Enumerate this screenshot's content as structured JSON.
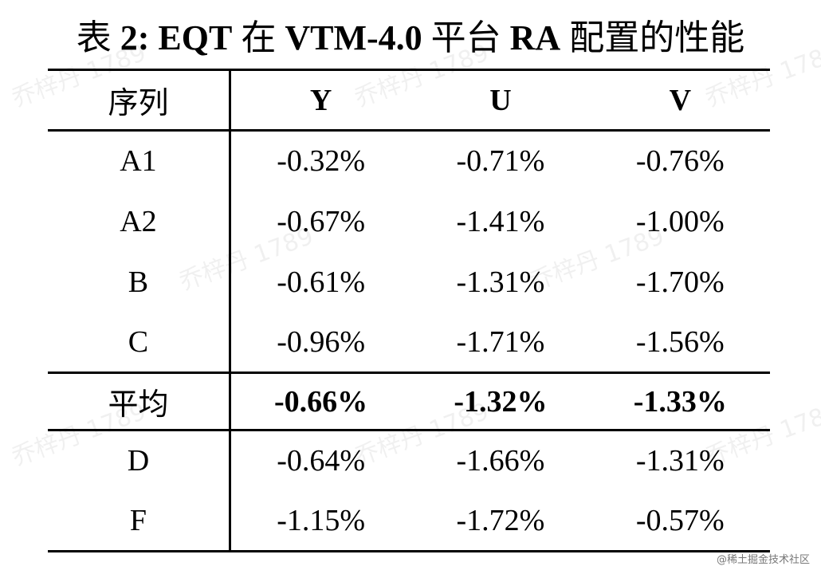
{
  "caption": {
    "prefix": "表",
    "label": "2:",
    "parts": [
      {
        "text": "EQT",
        "bold": true
      },
      {
        "text": "在",
        "bold": false
      },
      {
        "text": "VTM-4.0",
        "bold": true
      },
      {
        "text": "平台",
        "bold": false
      },
      {
        "text": "RA",
        "bold": true
      },
      {
        "text": "配置的性能",
        "bold": false
      }
    ]
  },
  "table": {
    "headers": [
      "序列",
      "Y",
      "U",
      "V"
    ],
    "group1": [
      {
        "seq": "A1",
        "y": "-0.32%",
        "u": "-0.71%",
        "v": "-0.76%"
      },
      {
        "seq": "A2",
        "y": "-0.67%",
        "u": "-1.41%",
        "v": "-1.00%"
      },
      {
        "seq": "B",
        "y": "-0.61%",
        "u": "-1.31%",
        "v": "-1.70%"
      },
      {
        "seq": "C",
        "y": "-0.96%",
        "u": "-1.71%",
        "v": "-1.56%"
      }
    ],
    "average": {
      "seq": "平均",
      "y": "-0.66%",
      "u": "-1.32%",
      "v": "-1.33%"
    },
    "group2": [
      {
        "seq": "D",
        "y": "-0.64%",
        "u": "-1.66%",
        "v": "-1.31%"
      },
      {
        "seq": "F",
        "y": "-1.15%",
        "u": "-1.72%",
        "v": "-0.57%"
      }
    ]
  },
  "watermark": {
    "text": "乔梓丹 1789"
  },
  "footer": {
    "text": "@稀土掘金技术社区"
  }
}
